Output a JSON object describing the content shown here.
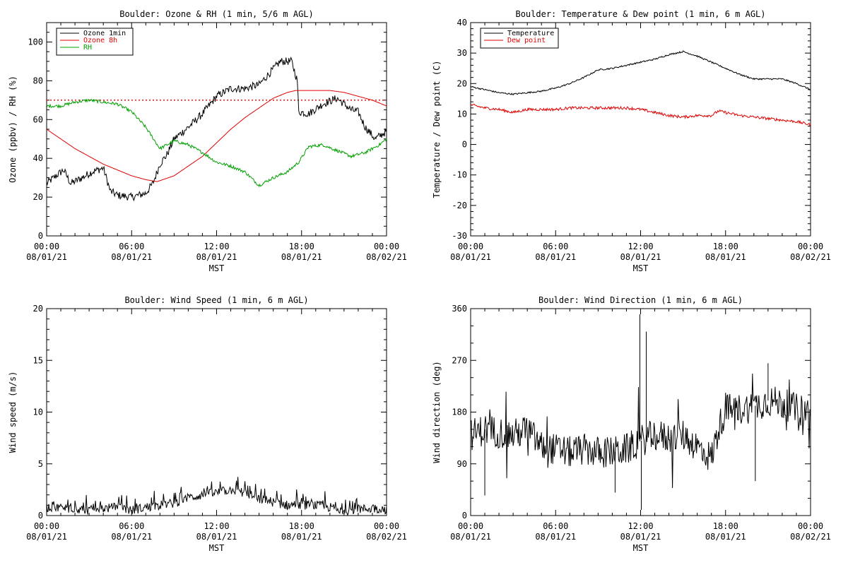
{
  "x_axis_shared": {
    "ticks": [
      {
        "time": "00:00",
        "date": "08/01/21"
      },
      {
        "time": "06:00",
        "date": "08/01/21"
      },
      {
        "time": "12:00",
        "date": "08/01/21"
      },
      {
        "time": "18:00",
        "date": "08/01/21"
      },
      {
        "time": "00:00",
        "date": "08/02/21"
      }
    ],
    "tick_hours": [
      0,
      6,
      12,
      18,
      24
    ],
    "xlabel": "MST"
  },
  "chart_data": [
    {
      "id": "ozone-rh",
      "type": "line",
      "title": "Boulder: Ozone & RH (1 min, 5/6 m AGL)",
      "ylabel": "Ozone (ppbv) / RH (%)",
      "xlabel": "MST",
      "xlim_hours": [
        0,
        24
      ],
      "ylim": [
        0,
        110
      ],
      "yticks": [
        0,
        20,
        40,
        60,
        80,
        100
      ],
      "legend_position": "top-left",
      "threshold_line": {
        "y": 70,
        "color": "#e00000",
        "style": "dotted"
      },
      "series": [
        {
          "name": "Ozone 1min",
          "color": "#000000",
          "noise": 2.0,
          "points": [
            [
              0,
              27
            ],
            [
              0.5,
              30
            ],
            [
              1.2,
              34
            ],
            [
              1.7,
              27
            ],
            [
              2.5,
              30
            ],
            [
              3.2,
              33
            ],
            [
              4.0,
              35
            ],
            [
              4.5,
              23
            ],
            [
              5.0,
              21
            ],
            [
              6.0,
              20
            ],
            [
              7.0,
              22
            ],
            [
              7.5,
              27
            ],
            [
              8.0,
              37
            ],
            [
              8.5,
              42
            ],
            [
              9.0,
              50
            ],
            [
              10.0,
              56
            ],
            [
              11.0,
              63
            ],
            [
              12.0,
              72
            ],
            [
              13.0,
              76
            ],
            [
              14.0,
              76
            ],
            [
              15.0,
              78
            ],
            [
              16.0,
              86
            ],
            [
              16.5,
              90
            ],
            [
              17.3,
              90
            ],
            [
              17.7,
              80
            ],
            [
              17.8,
              64
            ],
            [
              18.5,
              63
            ],
            [
              19.5,
              68
            ],
            [
              20.5,
              71
            ],
            [
              21.5,
              65
            ],
            [
              22.0,
              64
            ],
            [
              22.5,
              56
            ],
            [
              23.2,
              50
            ],
            [
              24.0,
              54
            ]
          ]
        },
        {
          "name": "Ozone 8h",
          "color": "#e00000",
          "noise": 0,
          "points": [
            [
              0,
              55
            ],
            [
              1,
              50
            ],
            [
              2,
              45
            ],
            [
              3,
              41
            ],
            [
              4,
              37
            ],
            [
              5,
              34
            ],
            [
              6,
              31
            ],
            [
              7,
              29
            ],
            [
              7.8,
              28
            ],
            [
              9,
              31
            ],
            [
              10,
              36
            ],
            [
              11,
              41
            ],
            [
              12,
              48
            ],
            [
              13,
              55
            ],
            [
              14,
              61
            ],
            [
              15,
              66
            ],
            [
              16,
              71
            ],
            [
              17,
              74
            ],
            [
              17.6,
              75
            ],
            [
              18,
              75
            ],
            [
              19,
              75
            ],
            [
              20,
              75
            ],
            [
              21,
              74
            ],
            [
              22,
              72
            ],
            [
              23,
              70
            ],
            [
              24,
              67
            ]
          ]
        },
        {
          "name": "RH",
          "color": "#00a000",
          "noise": 0.8,
          "points": [
            [
              0,
              67
            ],
            [
              1,
              67
            ],
            [
              2,
              69
            ],
            [
              3,
              70
            ],
            [
              4,
              69
            ],
            [
              5,
              68
            ],
            [
              6,
              64
            ],
            [
              7,
              56
            ],
            [
              8,
              45
            ],
            [
              8.5,
              47
            ],
            [
              9,
              49
            ],
            [
              10,
              47
            ],
            [
              11,
              43
            ],
            [
              12,
              38
            ],
            [
              13,
              36
            ],
            [
              14,
              33
            ],
            [
              15,
              26
            ],
            [
              16,
              30
            ],
            [
              17,
              33
            ],
            [
              17.8,
              38
            ],
            [
              18.5,
              46
            ],
            [
              19.5,
              47
            ],
            [
              20.5,
              44
            ],
            [
              21.5,
              41
            ],
            [
              22.5,
              43
            ],
            [
              23.5,
              47
            ],
            [
              24,
              50
            ]
          ]
        }
      ]
    },
    {
      "id": "temp-dew",
      "type": "line",
      "title": "Boulder: Temperature & Dew point (1 min, 6 m AGL)",
      "ylabel": "Temperature / Dew point (C)",
      "xlabel": "MST",
      "xlim_hours": [
        0,
        24
      ],
      "ylim": [
        -30,
        40
      ],
      "yticks": [
        -30,
        -20,
        -10,
        0,
        10,
        20,
        30,
        40
      ],
      "legend_position": "top-left",
      "series": [
        {
          "name": "Temperature",
          "color": "#000000",
          "noise": 0.25,
          "points": [
            [
              0,
              19
            ],
            [
              1,
              18
            ],
            [
              2,
              17
            ],
            [
              3,
              16.5
            ],
            [
              4,
              17
            ],
            [
              5,
              17.5
            ],
            [
              6,
              18.5
            ],
            [
              7,
              20
            ],
            [
              8,
              22
            ],
            [
              9,
              24.5
            ],
            [
              10,
              25
            ],
            [
              11,
              26
            ],
            [
              12,
              27
            ],
            [
              13,
              28
            ],
            [
              14,
              29.5
            ],
            [
              15,
              30.5
            ],
            [
              16,
              29
            ],
            [
              17,
              27
            ],
            [
              18,
              25
            ],
            [
              19,
              23
            ],
            [
              20,
              21.5
            ],
            [
              21,
              21.5
            ],
            [
              22,
              21.5
            ],
            [
              23,
              20
            ],
            [
              24,
              18
            ]
          ]
        },
        {
          "name": "Dew point",
          "color": "#e00000",
          "noise": 0.45,
          "points": [
            [
              0,
              13
            ],
            [
              1,
              12
            ],
            [
              2,
              11.5
            ],
            [
              3,
              10.5
            ],
            [
              4,
              11.5
            ],
            [
              5,
              11.5
            ],
            [
              6,
              11.5
            ],
            [
              7,
              12
            ],
            [
              8,
              12
            ],
            [
              9,
              12
            ],
            [
              10,
              12
            ],
            [
              11,
              12
            ],
            [
              12,
              11.5
            ],
            [
              13,
              10.5
            ],
            [
              14,
              9.5
            ],
            [
              15,
              9
            ],
            [
              16,
              9.5
            ],
            [
              17,
              9.5
            ],
            [
              17.5,
              11
            ],
            [
              18,
              10.5
            ],
            [
              19,
              9.5
            ],
            [
              20,
              9
            ],
            [
              21,
              8.5
            ],
            [
              22,
              8
            ],
            [
              23,
              7.5
            ],
            [
              24,
              6.5
            ]
          ]
        }
      ]
    },
    {
      "id": "wind-speed",
      "type": "line",
      "title": "Boulder: Wind Speed (1 min, 6 m AGL)",
      "ylabel": "Wind speed (m/s)",
      "xlabel": "MST",
      "xlim_hours": [
        0,
        24
      ],
      "ylim": [
        0,
        20
      ],
      "yticks": [
        0,
        5,
        10,
        15,
        20
      ],
      "legend_position": "none",
      "series": [
        {
          "name": "",
          "color": "#000000",
          "noise": 0.45,
          "points": [
            [
              0,
              0.8
            ],
            [
              2,
              0.7
            ],
            [
              3,
              0.5
            ],
            [
              4,
              0.7
            ],
            [
              5,
              0.8
            ],
            [
              6,
              0.5
            ],
            [
              7,
              0.8
            ],
            [
              8,
              1.0
            ],
            [
              9,
              1.2
            ],
            [
              10,
              1.7
            ],
            [
              11,
              2.0
            ],
            [
              12,
              2.2
            ],
            [
              13,
              2.5
            ],
            [
              14,
              2.2
            ],
            [
              15,
              1.6
            ],
            [
              16,
              1.3
            ],
            [
              17,
              1.0
            ],
            [
              18,
              1.0
            ],
            [
              19,
              1.0
            ],
            [
              20,
              0.8
            ],
            [
              21,
              0.4
            ],
            [
              22,
              0.6
            ],
            [
              23,
              0.7
            ],
            [
              24,
              0.6
            ]
          ]
        }
      ]
    },
    {
      "id": "wind-direction",
      "type": "line",
      "title": "Boulder: Wind Direction (1 min, 6 m AGL)",
      "ylabel": "Wind direction (deg)",
      "xlabel": "MST",
      "xlim_hours": [
        0,
        24
      ],
      "ylim": [
        0,
        360
      ],
      "yticks": [
        0,
        90,
        180,
        270,
        360
      ],
      "legend_position": "none",
      "series": [
        {
          "name": "",
          "color": "#000000",
          "noise": 28,
          "points": [
            [
              0,
              140
            ],
            [
              1,
              150
            ],
            [
              2,
              145
            ],
            [
              3,
              140
            ],
            [
              4,
              150
            ],
            [
              5,
              120
            ],
            [
              6,
              115
            ],
            [
              7,
              110
            ],
            [
              8,
              115
            ],
            [
              9,
              110
            ],
            [
              10,
              110
            ],
            [
              11,
              115
            ],
            [
              12,
              130
            ],
            [
              13,
              140
            ],
            [
              14,
              135
            ],
            [
              15,
              140
            ],
            [
              16,
              120
            ],
            [
              17,
              100
            ],
            [
              17.5,
              150
            ],
            [
              18,
              185
            ],
            [
              19,
              185
            ],
            [
              20,
              190
            ],
            [
              21,
              200
            ],
            [
              22,
              195
            ],
            [
              23,
              185
            ],
            [
              24,
              180
            ]
          ],
          "spikes": [
            [
              11.95,
              350
            ],
            [
              12.05,
              10
            ],
            [
              12.4,
              320
            ],
            [
              20.1,
              60
            ],
            [
              21.0,
              265
            ],
            [
              1.0,
              35
            ],
            [
              10.2,
              40
            ]
          ]
        }
      ]
    }
  ]
}
